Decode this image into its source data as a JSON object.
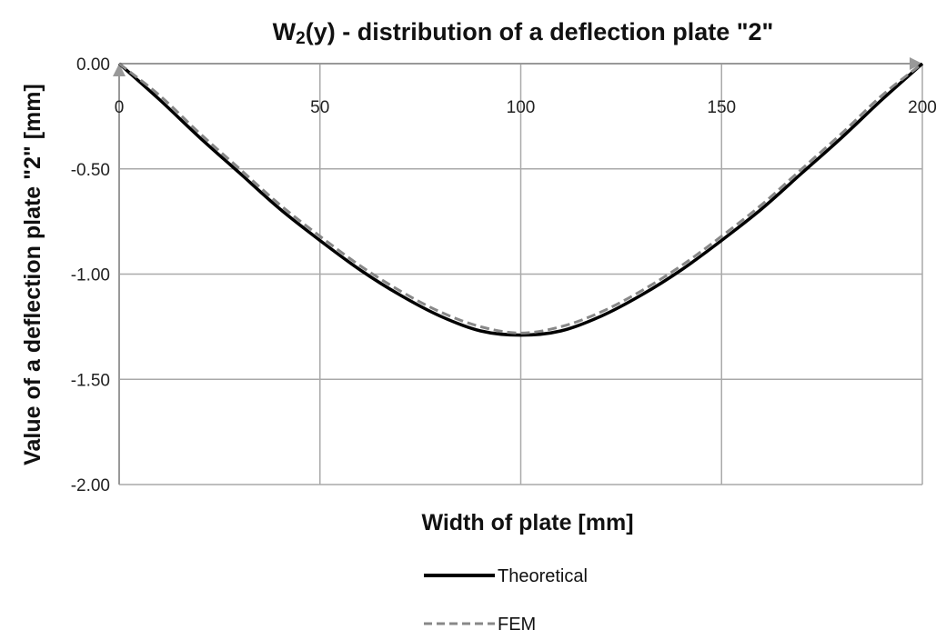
{
  "chart_data": {
    "type": "line",
    "title": "W2(y) - distribution of a deflection plate \"2\"",
    "title_parts": [
      "W",
      "2",
      "(y) - distribution of a deflection plate \"2\""
    ],
    "xlabel": "Width of plate [mm]",
    "ylabel": "Value of a deflection plate  \"2\" [mm]",
    "xlim": [
      0,
      200
    ],
    "ylim": [
      -2.0,
      0.0
    ],
    "x_ticks": [
      "0",
      "50",
      "100",
      "150",
      "200"
    ],
    "x_tick_values": [
      0,
      50,
      100,
      150,
      200
    ],
    "y_ticks": [
      "0.00",
      "-0.50",
      "-1.00",
      "-1.50",
      "-2.00"
    ],
    "y_tick_values": [
      0,
      -0.5,
      -1.0,
      -1.5,
      -2.0
    ],
    "grid": true,
    "legend_position": "bottom",
    "series": [
      {
        "name": "Theoretical",
        "style": "solid",
        "color": "#000000",
        "x": [
          0,
          10,
          20,
          30,
          40,
          50,
          60,
          70,
          80,
          90,
          100,
          110,
          120,
          130,
          140,
          150,
          160,
          170,
          180,
          190,
          200
        ],
        "y": [
          0.0,
          -0.17,
          -0.35,
          -0.52,
          -0.69,
          -0.84,
          -0.98,
          -1.1,
          -1.2,
          -1.27,
          -1.29,
          -1.27,
          -1.2,
          -1.1,
          -0.98,
          -0.84,
          -0.69,
          -0.52,
          -0.35,
          -0.17,
          0.0
        ]
      },
      {
        "name": "FEM",
        "style": "dashed",
        "color": "#888888",
        "x": [
          0,
          10,
          20,
          30,
          40,
          50,
          60,
          70,
          80,
          90,
          100,
          110,
          120,
          130,
          140,
          150,
          160,
          170,
          180,
          190,
          200
        ],
        "y": [
          0.0,
          -0.15,
          -0.33,
          -0.5,
          -0.67,
          -0.82,
          -0.96,
          -1.08,
          -1.18,
          -1.25,
          -1.28,
          -1.25,
          -1.18,
          -1.08,
          -0.96,
          -0.82,
          -0.67,
          -0.5,
          -0.33,
          -0.15,
          0.0
        ]
      }
    ]
  }
}
